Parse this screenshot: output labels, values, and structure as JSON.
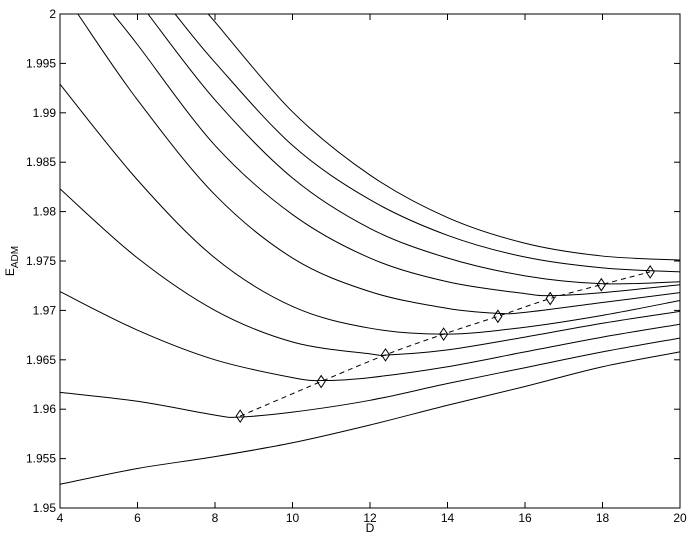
{
  "chart_data": {
    "type": "line",
    "xlabel": "D",
    "ylabel": "E",
    "ylabel_sub": "ADM",
    "xlim": [
      4,
      20
    ],
    "ylim": [
      1.95,
      2
    ],
    "xticks": [
      4,
      6,
      8,
      10,
      12,
      14,
      16,
      18,
      20
    ],
    "yticks": [
      1.95,
      1.955,
      1.96,
      1.965,
      1.97,
      1.975,
      1.98,
      1.985,
      1.99,
      1.995,
      2
    ],
    "series": [
      {
        "color": "#000000",
        "x": [
          4,
          6,
          8,
          10,
          12,
          14,
          16,
          18,
          20
        ],
        "values": [
          1.9524,
          1.954,
          1.9552,
          1.9566,
          1.9584,
          1.9604,
          1.9623,
          1.9643,
          1.9658
        ]
      },
      {
        "color": "#000000",
        "x": [
          4,
          6,
          8,
          8.6,
          10,
          12,
          14,
          16,
          18,
          20
        ],
        "values": [
          1.9617,
          1.9608,
          1.9594,
          1.9592,
          1.9597,
          1.9609,
          1.9626,
          1.9642,
          1.9658,
          1.9672
        ]
      },
      {
        "color": "#000000",
        "x": [
          4,
          6,
          8,
          10,
          10.8,
          12,
          14,
          16,
          18,
          20
        ],
        "values": [
          1.9719,
          1.968,
          1.965,
          1.9632,
          1.9629,
          1.9632,
          1.9643,
          1.9658,
          1.9673,
          1.9686
        ]
      },
      {
        "color": "#000000",
        "x": [
          4,
          6,
          8,
          10,
          12,
          12.5,
          14,
          16,
          18,
          20
        ],
        "values": [
          1.9823,
          1.9753,
          1.97,
          1.9668,
          1.9656,
          1.9655,
          1.966,
          1.9673,
          1.9687,
          1.9699
        ]
      },
      {
        "color": "#000000",
        "x": [
          4,
          6,
          8,
          10,
          12,
          14,
          16,
          18,
          20
        ],
        "values": [
          1.9929,
          1.9832,
          1.9753,
          1.9704,
          1.9682,
          1.9676,
          1.9683,
          1.9695,
          1.971
        ]
      },
      {
        "color": "#000000",
        "x": [
          4.46,
          6,
          8,
          10,
          12,
          14,
          15.3,
          16,
          18,
          20
        ],
        "values": [
          2,
          1.9913,
          1.9817,
          1.9753,
          1.9719,
          1.9702,
          1.9697,
          1.9698,
          1.9708,
          1.9718
        ]
      },
      {
        "color": "#000000",
        "x": [
          5.37,
          6,
          8,
          10,
          12,
          14,
          16,
          16.7,
          18,
          20
        ],
        "values": [
          2,
          1.9969,
          1.9867,
          1.9797,
          1.9753,
          1.9729,
          1.9717,
          1.9715,
          1.9718,
          1.9726
        ]
      },
      {
        "color": "#000000",
        "x": [
          6.27,
          8,
          10,
          12,
          14,
          16,
          18,
          20
        ],
        "values": [
          2,
          1.9913,
          1.9834,
          1.9783,
          1.9753,
          1.9735,
          1.9727,
          1.9729
        ]
      },
      {
        "color": "#000000",
        "x": [
          6.97,
          8,
          10,
          12,
          14,
          16,
          18,
          20
        ],
        "values": [
          2,
          1.9951,
          1.9867,
          1.9812,
          1.9776,
          1.9754,
          1.9743,
          1.9739
        ]
      },
      {
        "color": "#000000",
        "x": [
          7.82,
          8,
          10,
          12,
          14,
          16,
          18,
          20
        ],
        "values": [
          2,
          1.9992,
          1.9901,
          1.9837,
          1.9794,
          1.9768,
          1.9755,
          1.9751
        ]
      },
      {
        "color": "#000000",
        "dashed": true,
        "marker": "diamond",
        "x": [
          8.65,
          10.74,
          12.4,
          13.9,
          15.3,
          16.65,
          17.97,
          19.23
        ],
        "values": [
          1.9593,
          1.9628,
          1.9655,
          1.9676,
          1.9694,
          1.9712,
          1.9726,
          1.9739
        ]
      }
    ]
  }
}
